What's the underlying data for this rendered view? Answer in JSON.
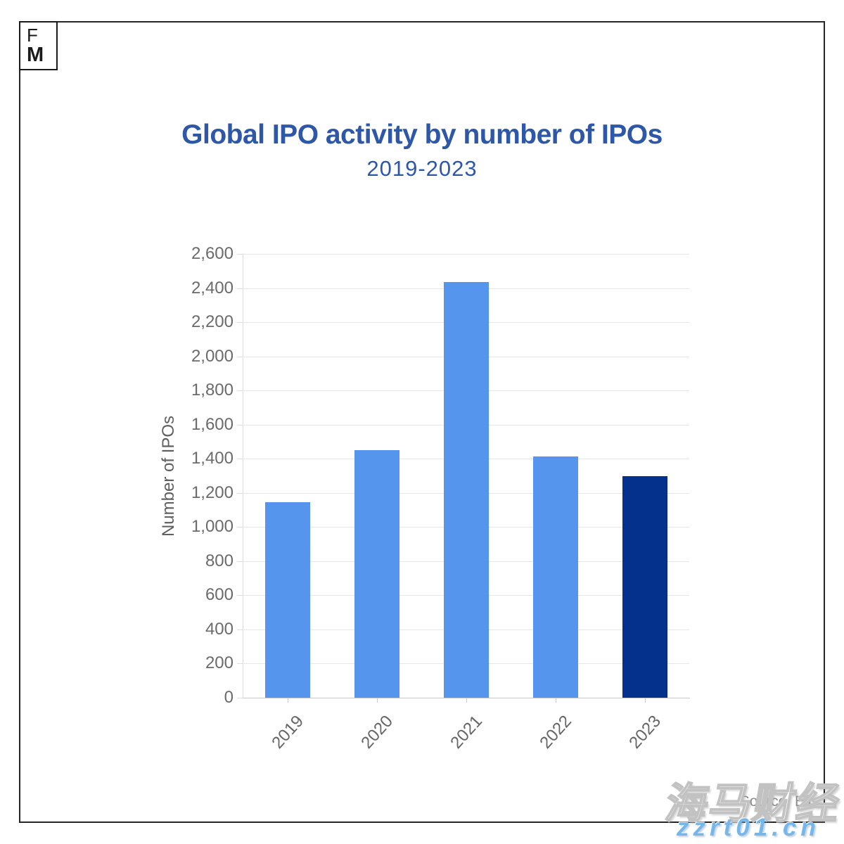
{
  "logo": {
    "line1": "F",
    "line2": "M"
  },
  "header": {
    "title": "Global IPO activity by number of IPOs",
    "subtitle": "2019-2023"
  },
  "chart_data": {
    "type": "bar",
    "title": "Global IPO activity by number of IPOs",
    "subtitle": "2019-2023",
    "categories": [
      "2019",
      "2020",
      "2021",
      "2022",
      "2023"
    ],
    "values": [
      1146,
      1452,
      2436,
      1415,
      1298
    ],
    "bar_colors": [
      "#5695EE",
      "#5695EE",
      "#5695EE",
      "#5695EE",
      "#04318C"
    ],
    "xlabel": "",
    "ylabel": "Number of IPOs",
    "ylim": [
      0,
      2600
    ],
    "ytick_step": 200,
    "grid": true,
    "legend": false
  },
  "footer": {
    "source_label": "Source: EY"
  },
  "watermark": {
    "cjk_text": "海马财经",
    "site_text": "zzrt01.cn"
  },
  "colors": {
    "title_blue": "#2E57A8",
    "bar_default": "#5695EE",
    "bar_highlight": "#04318C",
    "axis_text": "#666666",
    "gridline": "#E7E7E7",
    "frame_border": "#262626",
    "watermark_site": "#76B7EA"
  }
}
